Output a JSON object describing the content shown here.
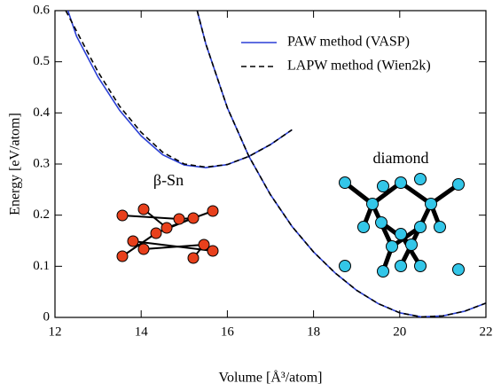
{
  "chart_data": {
    "type": "line",
    "xlabel": "Volume [Å³/atom]",
    "ylabel": "Energy [eV/atom]",
    "xlim": [
      12,
      22
    ],
    "xticks": [
      12,
      14,
      16,
      18,
      20,
      22
    ],
    "ylim": [
      0,
      0.6
    ],
    "yticks": [
      0,
      0.1,
      0.2,
      0.3,
      0.4,
      0.5,
      0.6
    ],
    "legend": "upper right",
    "annotations": [
      "β-Sn",
      "diamond"
    ],
    "series": [
      {
        "name": "PAW method (VASP)",
        "color": "#2a3fd6",
        "dash": "solid",
        "x": [
          12.3,
          12.5,
          13,
          13.5,
          14,
          14.5,
          15,
          15.5,
          16,
          16.5,
          17,
          17.5,
          null,
          15.3,
          15.5,
          16,
          16.5,
          17,
          17.5,
          18,
          18.5,
          19,
          19.5,
          20,
          20.5,
          21,
          21.5,
          22
        ],
        "values": [
          0.6,
          0.55,
          0.47,
          0.405,
          0.355,
          0.318,
          0.298,
          0.293,
          0.299,
          0.315,
          0.338,
          0.367,
          null,
          0.6,
          0.535,
          0.41,
          0.315,
          0.24,
          0.178,
          0.128,
          0.087,
          0.053,
          0.027,
          0.009,
          0.001,
          0.003,
          0.012,
          0.028
        ]
      },
      {
        "name": "LAPW method (Wien2k)",
        "color": "#000000",
        "dash": "dashed",
        "x": [
          12.25,
          12.5,
          13,
          13.5,
          14,
          14.5,
          15,
          15.5,
          16,
          16.5,
          17,
          17.5,
          null,
          15.3,
          15.5,
          16,
          16.5,
          17,
          17.5,
          18,
          18.5,
          19,
          19.5,
          20,
          20.5,
          21,
          21.5,
          22
        ],
        "values": [
          0.6,
          0.56,
          0.48,
          0.413,
          0.362,
          0.323,
          0.3,
          0.294,
          0.299,
          0.315,
          0.338,
          0.367,
          null,
          0.6,
          0.535,
          0.41,
          0.315,
          0.24,
          0.178,
          0.128,
          0.087,
          0.053,
          0.027,
          0.009,
          0.001,
          0.003,
          0.012,
          0.028
        ]
      }
    ]
  }
}
